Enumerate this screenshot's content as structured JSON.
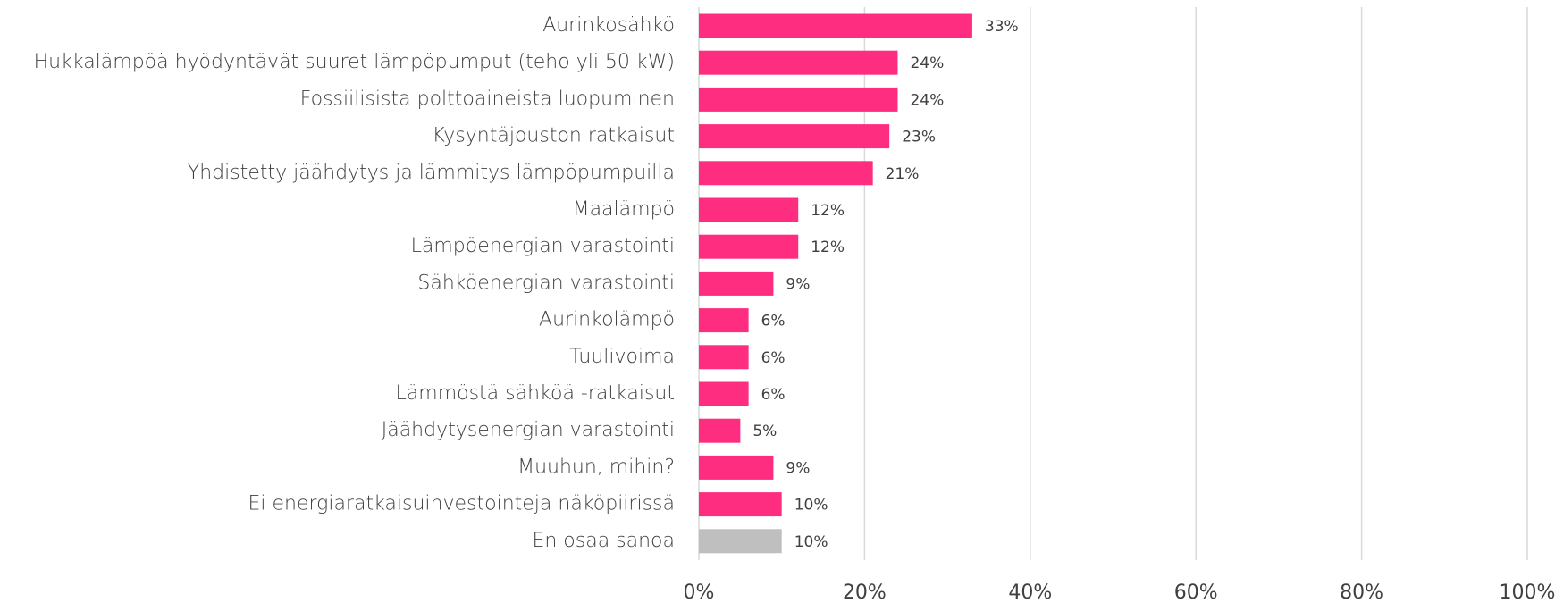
{
  "chart_data": {
    "type": "barh",
    "categories": [
      "Aurinkosähkö",
      "Hukkalämpöä hyödyntävät suuret lämpöpumput (teho yli 50 kW)",
      "Fossiilisista polttoaineista luopuminen",
      "Kysyntäjouston ratkaisut",
      "Yhdistetty jäähdytys ja lämmitys lämpöpumpuilla",
      "Maalämpö",
      "Lämpöenergian varastointi",
      "Sähköenergian varastointi",
      "Aurinkolämpö",
      "Tuulivoima",
      "Lämmöstä sähköä -ratkaisut",
      "Jäähdytysenergian varastointi",
      "Muuhun, mihin?",
      "Ei energiaratkaisuinvestointeja näköpiirissä",
      "En osaa sanoa"
    ],
    "values": [
      33,
      24,
      24,
      23,
      21,
      12,
      12,
      9,
      6,
      6,
      6,
      5,
      9,
      10,
      10
    ],
    "value_labels": [
      "33%",
      "24%",
      "24%",
      "23%",
      "21%",
      "12%",
      "12%",
      "9%",
      "6%",
      "6%",
      "6%",
      "5%",
      "9%",
      "10%",
      "10%"
    ],
    "colors": [
      "#ff2d7f",
      "#ff2d7f",
      "#ff2d7f",
      "#ff2d7f",
      "#ff2d7f",
      "#ff2d7f",
      "#ff2d7f",
      "#ff2d7f",
      "#ff2d7f",
      "#ff2d7f",
      "#ff2d7f",
      "#ff2d7f",
      "#ff2d7f",
      "#ff2d7f",
      "#bfbfbf"
    ],
    "xlim": [
      0,
      100
    ],
    "xticks": [
      {
        "value": 0,
        "label": "0%"
      },
      {
        "value": 20,
        "label": "20%"
      },
      {
        "value": 40,
        "label": "40%"
      },
      {
        "value": 60,
        "label": "60%"
      },
      {
        "value": 80,
        "label": "80%"
      },
      {
        "value": 100,
        "label": "100%"
      }
    ],
    "grid": true
  }
}
